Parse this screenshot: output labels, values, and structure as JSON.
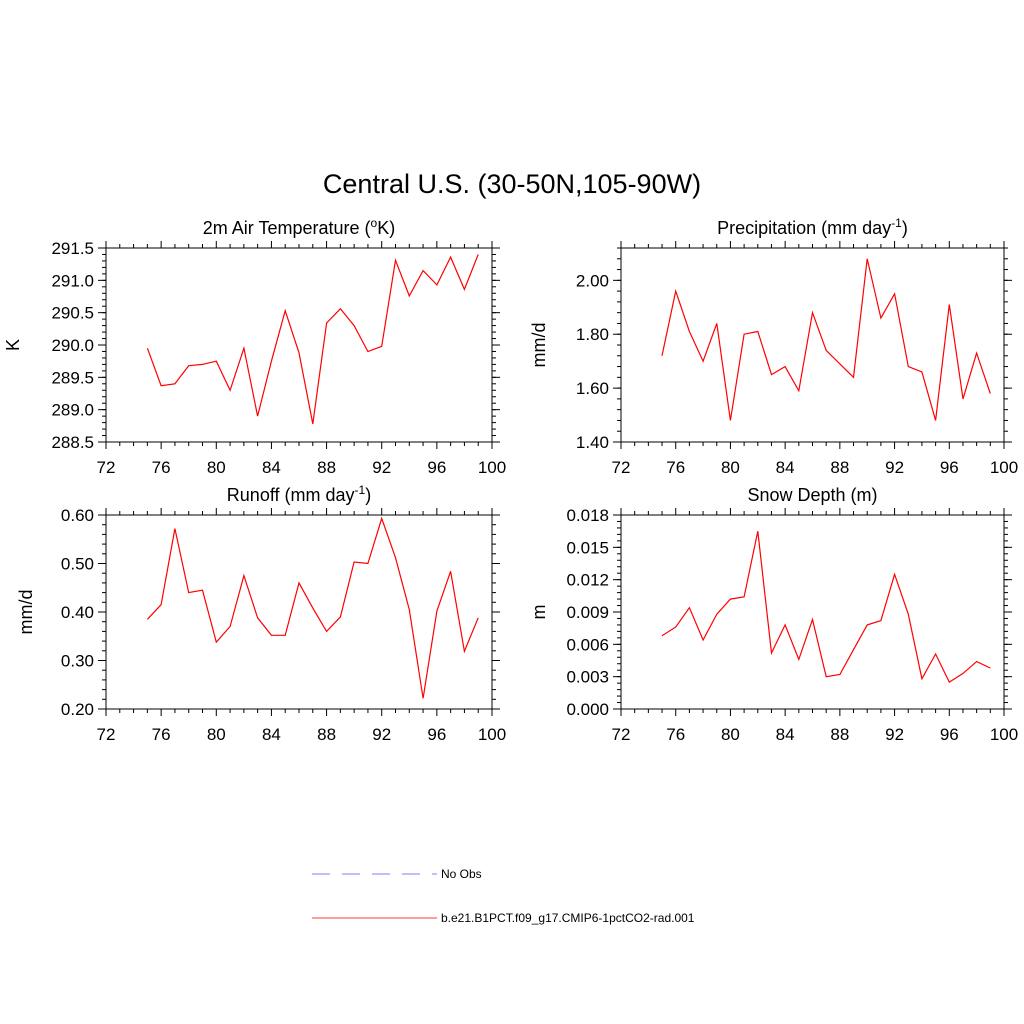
{
  "figure": {
    "title": "Central U.S. (30-50N,105-90W)"
  },
  "legend": {
    "items": [
      {
        "label": "No Obs",
        "color": "#9999ff",
        "dash": true
      },
      {
        "label": "b.e21.B1PCT.f09_g17.CMIP6-1pctCO2-rad.001",
        "color": "#ff6060",
        "dash": false
      }
    ]
  },
  "chart_data": [
    {
      "type": "line",
      "title_main": "2m Air Temperature (",
      "title_sup_prefix": "o",
      "title_after": "K)",
      "title_sup": "",
      "title_end": "",
      "ylabel": "K",
      "xlim": [
        72,
        100
      ],
      "ylim": [
        288.5,
        291.5
      ],
      "xticks": [
        "72",
        "76",
        "80",
        "84",
        "88",
        "92",
        "96",
        "100"
      ],
      "yticks": [
        "288.5",
        "289.0",
        "289.5",
        "290.0",
        "290.5",
        "291.0",
        "291.5"
      ],
      "series": [
        {
          "color": "#ff0000",
          "x": [
            75,
            76,
            77,
            78,
            79,
            80,
            81,
            82,
            83,
            84,
            85,
            86,
            87,
            88,
            89,
            90,
            91,
            92,
            93,
            94,
            95,
            96,
            97,
            98,
            99
          ],
          "y": [
            289.95,
            289.37,
            289.4,
            289.68,
            289.7,
            289.75,
            289.3,
            289.95,
            288.9,
            289.75,
            290.53,
            289.88,
            288.78,
            290.34,
            290.56,
            290.3,
            289.9,
            289.98,
            291.31,
            290.76,
            291.15,
            290.93,
            291.36,
            290.86,
            291.4
          ]
        }
      ]
    },
    {
      "type": "line",
      "title_main": "Precipitation (mm day",
      "title_sup": "-1",
      "title_end": ")",
      "ylabel": "mm/d",
      "xlim": [
        72,
        100
      ],
      "ylim": [
        1.4,
        2.12
      ],
      "xticks": [
        "72",
        "76",
        "80",
        "84",
        "88",
        "92",
        "96",
        "100"
      ],
      "yticks": [
        "1.40",
        "1.60",
        "1.80",
        "2.00"
      ],
      "ytick_values": [
        1.4,
        1.6,
        1.8,
        2.0
      ],
      "series": [
        {
          "color": "#ff0000",
          "x": [
            75,
            76,
            77,
            78,
            79,
            80,
            81,
            82,
            83,
            84,
            85,
            86,
            87,
            88,
            89,
            90,
            91,
            92,
            93,
            94,
            95,
            96,
            97,
            98,
            99
          ],
          "y": [
            1.72,
            1.96,
            1.81,
            1.7,
            1.84,
            1.48,
            1.8,
            1.81,
            1.65,
            1.68,
            1.59,
            1.88,
            1.74,
            1.69,
            1.64,
            2.08,
            1.86,
            1.95,
            1.68,
            1.66,
            1.48,
            1.91,
            1.56,
            1.73,
            1.58
          ]
        }
      ]
    },
    {
      "type": "line",
      "title_main": "Runoff (mm day",
      "title_sup": "-1",
      "title_end": ")",
      "ylabel": "mm/d",
      "xlim": [
        72,
        100
      ],
      "ylim": [
        0.2,
        0.6
      ],
      "xticks": [
        "72",
        "76",
        "80",
        "84",
        "88",
        "92",
        "96",
        "100"
      ],
      "yticks": [
        "0.20",
        "0.30",
        "0.40",
        "0.50",
        "0.60"
      ],
      "ytick_values": [
        0.2,
        0.3,
        0.4,
        0.5,
        0.6
      ],
      "series": [
        {
          "color": "#ff0000",
          "x": [
            75,
            76,
            77,
            78,
            79,
            80,
            81,
            82,
            83,
            84,
            85,
            86,
            87,
            88,
            89,
            90,
            91,
            92,
            93,
            94,
            95,
            96,
            97,
            98,
            99
          ],
          "y": [
            0.385,
            0.415,
            0.572,
            0.44,
            0.445,
            0.338,
            0.37,
            0.475,
            0.388,
            0.352,
            0.352,
            0.46,
            0.408,
            0.36,
            0.39,
            0.503,
            0.5,
            0.593,
            0.512,
            0.405,
            0.222,
            0.402,
            0.484,
            0.319,
            0.388
          ]
        }
      ]
    },
    {
      "type": "line",
      "title_main": "Snow Depth (m)",
      "title_sup": "",
      "title_end": "",
      "ylabel": "m",
      "xlim": [
        72,
        100
      ],
      "ylim": [
        0.0,
        0.018
      ],
      "xticks": [
        "72",
        "76",
        "80",
        "84",
        "88",
        "92",
        "96",
        "100"
      ],
      "yticks": [
        "0.000",
        "0.003",
        "0.006",
        "0.009",
        "0.012",
        "0.015",
        "0.018"
      ],
      "ytick_values": [
        0.0,
        0.003,
        0.006,
        0.009,
        0.012,
        0.015,
        0.018
      ],
      "series": [
        {
          "color": "#ff0000",
          "x": [
            75,
            76,
            77,
            78,
            79,
            80,
            81,
            82,
            83,
            84,
            85,
            86,
            87,
            88,
            89,
            90,
            91,
            92,
            93,
            94,
            95,
            96,
            97,
            98,
            99
          ],
          "y": [
            0.0068,
            0.0076,
            0.0094,
            0.0064,
            0.0088,
            0.0102,
            0.0104,
            0.0165,
            0.0052,
            0.0078,
            0.0046,
            0.0083,
            0.003,
            0.0032,
            0.0055,
            0.0078,
            0.0082,
            0.0125,
            0.0088,
            0.0028,
            0.0051,
            0.0025,
            0.0033,
            0.0044,
            0.0038
          ]
        }
      ]
    }
  ]
}
